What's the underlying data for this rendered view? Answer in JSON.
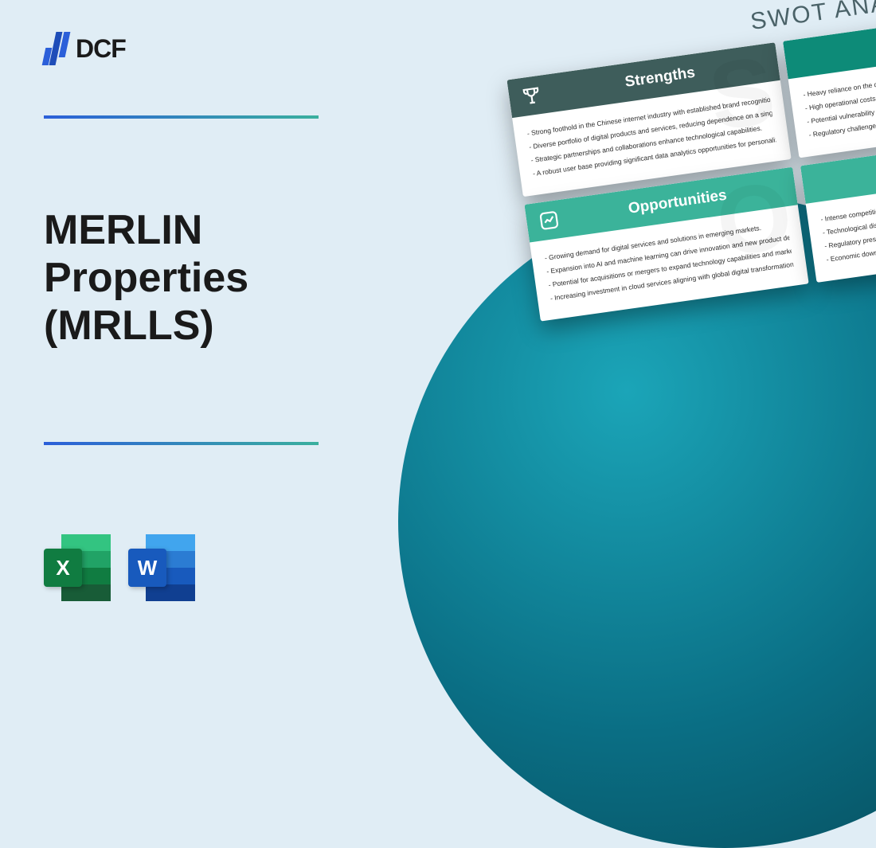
{
  "brand": {
    "name": "DCF"
  },
  "title": "MERLIN\nProperties\n(MRLLS)",
  "file_icons": {
    "excel": "X",
    "word": "W"
  },
  "colors": {
    "background": "#e0edf5",
    "divider_gradient_from": "#2b5fd9",
    "divider_gradient_to": "#3ab09e",
    "circle_gradient": [
      "#1ba5b8",
      "#0a6e84",
      "#064856"
    ],
    "title_text": "#1a1a1a",
    "swot_title": "#4a6268",
    "excel_badge": "#107c41",
    "word_badge": "#185abd",
    "excel_bands": [
      "#33c481",
      "#21a366",
      "#107c41",
      "#185c37"
    ],
    "word_bands": [
      "#41a5ee",
      "#2b7cd3",
      "#185abd",
      "#103f91"
    ]
  },
  "swot": {
    "heading": "SWOT ANALYSIS",
    "rotation_deg": -8,
    "cards": {
      "strengths": {
        "title": "Strengths",
        "watermark": "S",
        "header_bg": "#3e5d5b",
        "items": [
          "- Strong foothold in the Chinese internet industry with established brand recognition.",
          "- Diverse portfolio of digital products and services, reducing dependence on a single revenue stream.",
          "- Strategic partnerships and collaborations enhance technological capabilities.",
          "- A robust user base providing significant data analytics opportunities for personalized services."
        ]
      },
      "opportunities": {
        "title": "Opportunities",
        "watermark": "O",
        "header_bg": "#3bb39a",
        "items": [
          "- Growing demand for digital services and solutions in emerging markets.",
          "- Expansion into AI and machine learning can drive innovation and new product development.",
          "- Potential for acquisitions or mergers to expand technology capabilities and market reach.",
          "- Increasing investment in cloud services aligning with global digital transformation trends."
        ]
      },
      "weaknesses": {
        "header_bg": "#0d8b78",
        "items": [
          "- Heavy reliance on the domestic",
          "- High operational costs due to",
          "- Potential vulnerability to rap",
          "- Regulatory challenges withi"
        ]
      },
      "threats": {
        "header_bg": "#3bb39a",
        "items": [
          "- Intense competition",
          "- Technological disrup",
          "- Regulatory pressu",
          "- Economic downt"
        ]
      }
    }
  }
}
